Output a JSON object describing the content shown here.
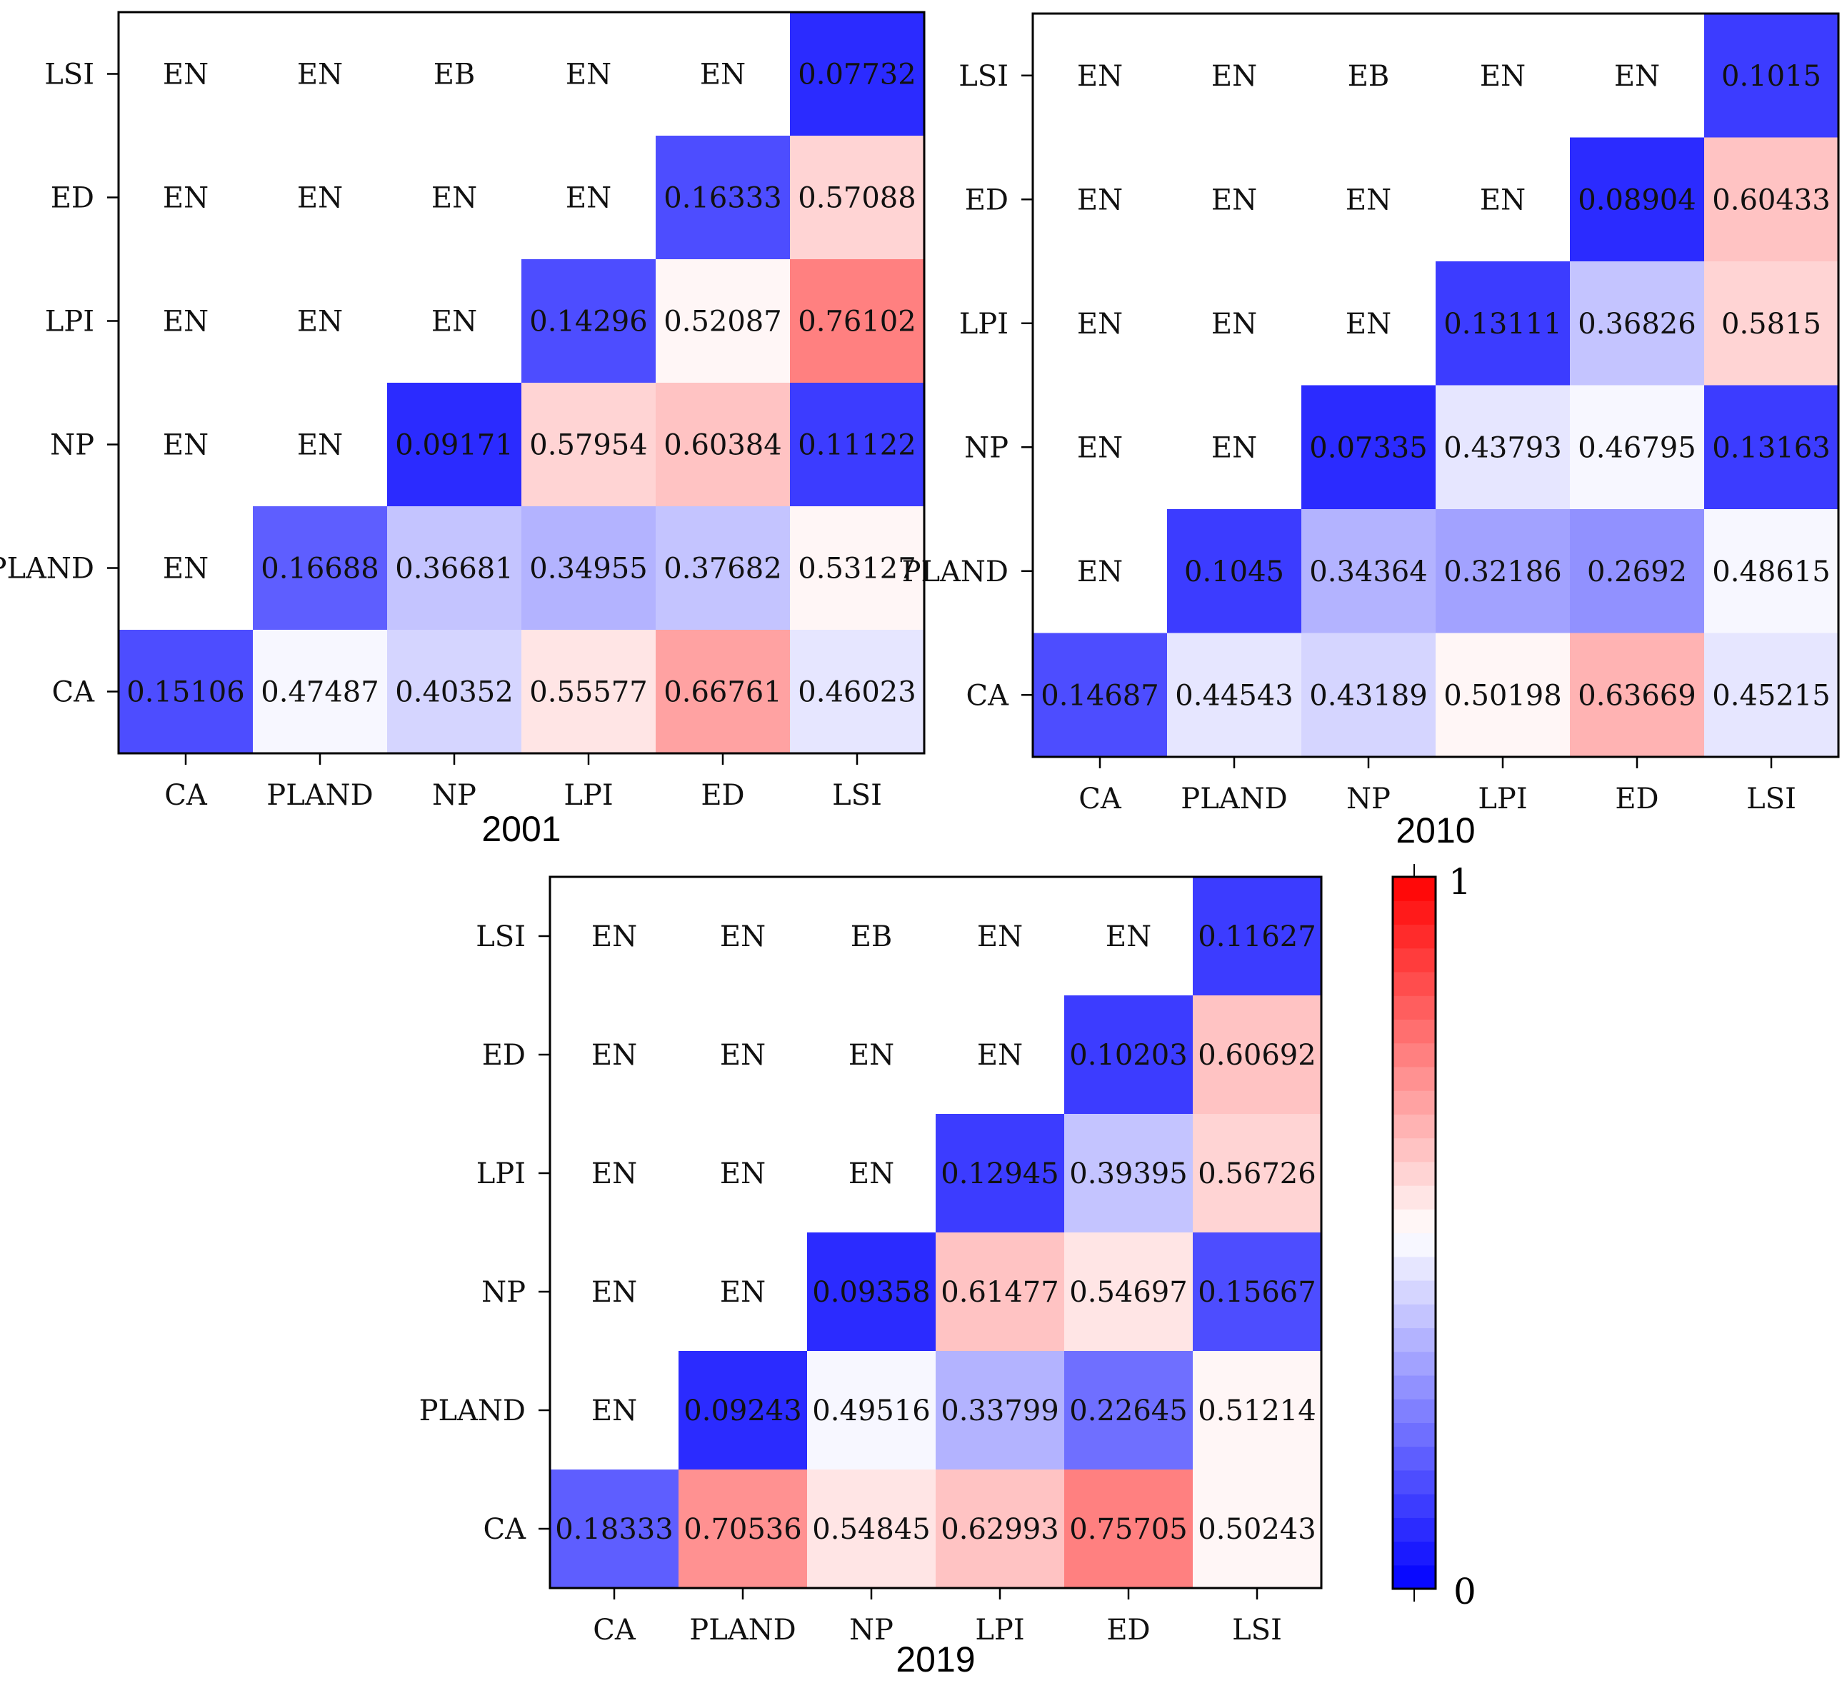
{
  "chart_data": [
    {
      "type": "heatmap",
      "title": "2001",
      "x_categories": [
        "CA",
        "PLAND",
        "NP",
        "LPI",
        "ED",
        "LSI"
      ],
      "y_categories": [
        "LSI",
        "ED",
        "LPI",
        "NP",
        "PLAND",
        "CA"
      ],
      "cells": [
        [
          "EN",
          "EN",
          "EB",
          "EN",
          "EN",
          "0.07732"
        ],
        [
          "EN",
          "EN",
          "EN",
          "EN",
          "0.16333",
          "0.57088"
        ],
        [
          "EN",
          "EN",
          "EN",
          "0.14296",
          "0.52087",
          "0.76102"
        ],
        [
          "EN",
          "EN",
          "0.09171",
          "0.57954",
          "0.60384",
          "0.11122"
        ],
        [
          "EN",
          "0.16688",
          "0.36681",
          "0.34955",
          "0.37682",
          "0.53127"
        ],
        [
          "0.15106",
          "0.47487",
          "0.40352",
          "0.55577",
          "0.66761",
          "0.46023"
        ]
      ]
    },
    {
      "type": "heatmap",
      "title": "2010",
      "x_categories": [
        "CA",
        "PLAND",
        "NP",
        "LPI",
        "ED",
        "LSI"
      ],
      "y_categories": [
        "LSI",
        "ED",
        "LPI",
        "NP",
        "PLAND",
        "CA"
      ],
      "cells": [
        [
          "EN",
          "EN",
          "EB",
          "EN",
          "EN",
          "0.1015"
        ],
        [
          "EN",
          "EN",
          "EN",
          "EN",
          "0.08904",
          "0.60433"
        ],
        [
          "EN",
          "EN",
          "EN",
          "0.13111",
          "0.36826",
          "0.5815"
        ],
        [
          "EN",
          "EN",
          "0.07335",
          "0.43793",
          "0.46795",
          "0.13163"
        ],
        [
          "EN",
          "0.1045",
          "0.34364",
          "0.32186",
          "0.2692",
          "0.48615"
        ],
        [
          "0.14687",
          "0.44543",
          "0.43189",
          "0.50198",
          "0.63669",
          "0.45215"
        ]
      ]
    },
    {
      "type": "heatmap",
      "title": "2019",
      "x_categories": [
        "CA",
        "PLAND",
        "NP",
        "LPI",
        "ED",
        "LSI"
      ],
      "y_categories": [
        "LSI",
        "ED",
        "LPI",
        "NP",
        "PLAND",
        "CA"
      ],
      "cells": [
        [
          "EN",
          "EN",
          "EB",
          "EN",
          "EN",
          "0.11627"
        ],
        [
          "EN",
          "EN",
          "EN",
          "EN",
          "0.10203",
          "0.60692"
        ],
        [
          "EN",
          "EN",
          "EN",
          "0.12945",
          "0.39395",
          "0.56726"
        ],
        [
          "EN",
          "EN",
          "0.09358",
          "0.61477",
          "0.54697",
          "0.15667"
        ],
        [
          "EN",
          "0.09243",
          "0.49516",
          "0.33799",
          "0.22645",
          "0.51214"
        ],
        [
          "0.18333",
          "0.70536",
          "0.54845",
          "0.62993",
          "0.75705",
          "0.50243"
        ]
      ]
    }
  ],
  "colorbar": {
    "min_label": "0",
    "max_label": "1",
    "range": [
      0,
      1
    ],
    "levels": 30,
    "colormap": "bwr"
  },
  "colors": {
    "low": "#0000ff",
    "mid": "#ffffff",
    "high": "#ff0000"
  }
}
